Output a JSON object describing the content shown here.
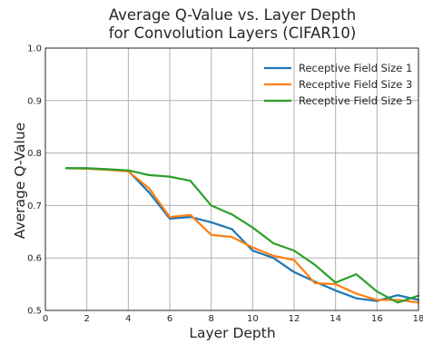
{
  "chart_data": {
    "type": "line",
    "title_lines": [
      "Average Q-Value vs. Layer Depth",
      "for Convolution Layers (CIFAR10)"
    ],
    "xlabel": "Layer Depth",
    "ylabel": "Average Q-Value",
    "xlim": [
      0,
      18
    ],
    "ylim": [
      0.5,
      1.0
    ],
    "xticks": [
      0,
      2,
      4,
      6,
      8,
      10,
      12,
      14,
      16,
      18
    ],
    "yticks": [
      0.5,
      0.6,
      0.7,
      0.8,
      0.9,
      1.0
    ],
    "ytick_labels": [
      "0.5",
      "0.6",
      "0.7",
      "0.8",
      "0.9",
      "1.0"
    ],
    "grid": true,
    "legend_position": "top-right",
    "x": [
      1,
      2,
      3,
      4,
      5,
      6,
      7,
      8,
      9,
      10,
      11,
      12,
      13,
      14,
      15,
      16,
      17,
      18
    ],
    "series": [
      {
        "name": "Receptive Field Size 1",
        "color": "#1f77b4",
        "values": [
          0.771,
          0.771,
          0.769,
          0.766,
          0.725,
          0.675,
          0.678,
          0.668,
          0.655,
          0.614,
          0.6,
          0.573,
          0.555,
          0.538,
          0.523,
          0.518,
          0.529,
          0.52
        ]
      },
      {
        "name": "Receptive Field Size 3",
        "color": "#ff7f0e",
        "values": [
          0.771,
          0.77,
          0.768,
          0.765,
          0.733,
          0.678,
          0.682,
          0.644,
          0.64,
          0.62,
          0.604,
          0.596,
          0.552,
          0.55,
          0.532,
          0.52,
          0.52,
          0.515
        ]
      },
      {
        "name": "Receptive Field Size 5",
        "color": "#2ca02c",
        "values": [
          0.771,
          0.771,
          0.769,
          0.767,
          0.758,
          0.755,
          0.747,
          0.7,
          0.683,
          0.658,
          0.628,
          0.614,
          0.587,
          0.553,
          0.569,
          0.536,
          0.515,
          0.528
        ]
      }
    ]
  }
}
